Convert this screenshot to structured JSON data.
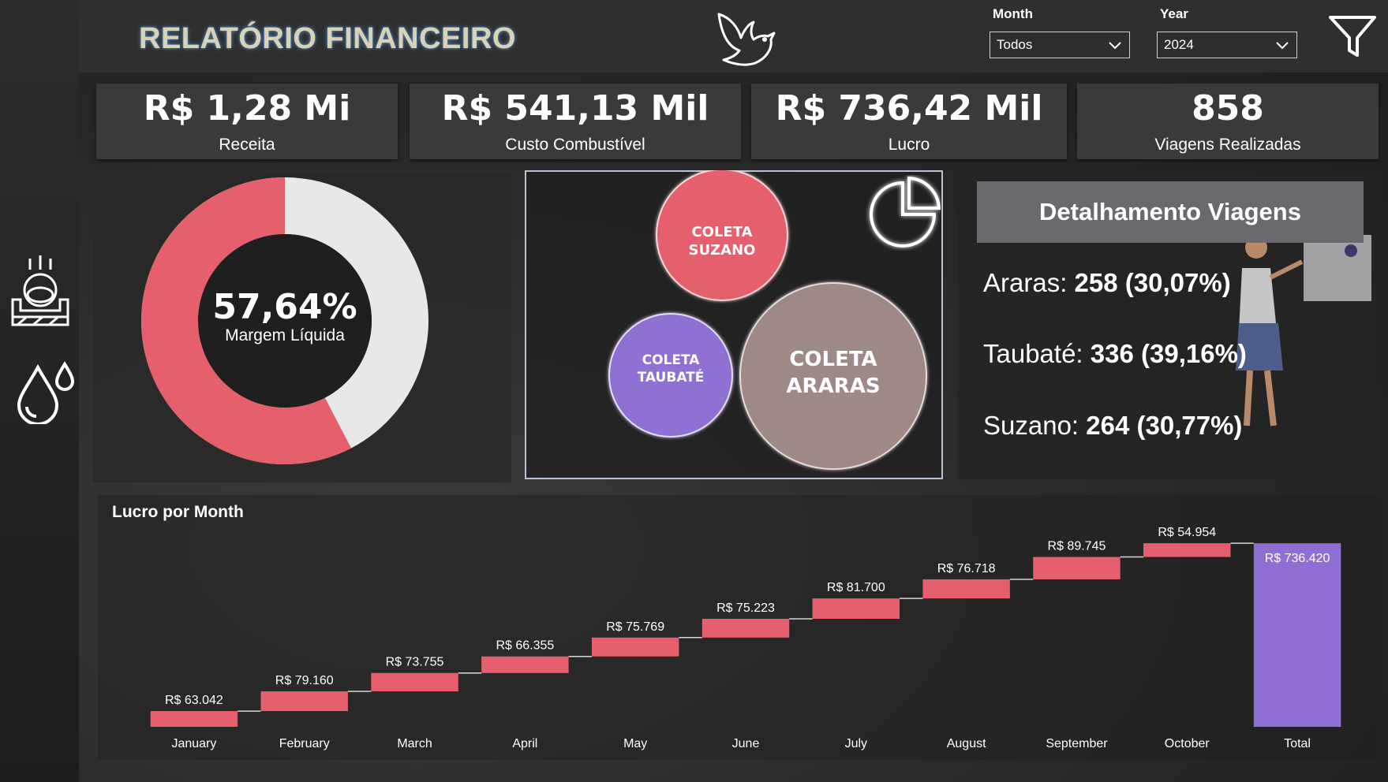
{
  "header": {
    "title": "RELATÓRIO FINANCEIRO",
    "month_slicer": {
      "label": "Month",
      "value": "Todos"
    },
    "year_slicer": {
      "label": "Year",
      "value": "2024"
    }
  },
  "kpis": [
    {
      "value": "R$ 1,28 Mi",
      "label": "Receita"
    },
    {
      "value": "R$ 541,13 Mil",
      "label": "Custo Combustível"
    },
    {
      "value": "R$ 736,42 Mil",
      "label": "Lucro"
    },
    {
      "value": "858",
      "label": "Viagens Realizadas"
    }
  ],
  "colors": {
    "accent": "#e5606c",
    "ring_rest": "#e8e8e8",
    "purple": "#8f6fd3",
    "taupe": "#9e8987"
  },
  "donut": {
    "value_text": "57,64%",
    "label": "Margem Líquida",
    "fraction": 0.5764
  },
  "bubbles": [
    {
      "line1": "COLETA",
      "line2": "SUZANO",
      "color": "#e5606c"
    },
    {
      "line1": "COLETA",
      "line2": "TAUBATÉ",
      "color": "#8f6fd3"
    },
    {
      "line1": "COLETA",
      "line2": "ARARAS",
      "color": "#9e8987"
    }
  ],
  "detalhamento": {
    "title": "Detalhamento Viagens",
    "rows": [
      {
        "city": "Araras:",
        "count": "258",
        "pct": "(30,07%)"
      },
      {
        "city": "Taubaté:",
        "count": "336",
        "pct": "(39,16%)"
      },
      {
        "city": "Suzano:",
        "count": "264",
        "pct": "(30,77%)"
      }
    ]
  },
  "chart_data": {
    "type": "waterfall",
    "title": "Lucro por Month",
    "categories": [
      "January",
      "February",
      "March",
      "April",
      "May",
      "June",
      "July",
      "August",
      "September",
      "October",
      "Total"
    ],
    "values": [
      63042,
      79160,
      73755,
      66355,
      75769,
      75223,
      81700,
      76718,
      89745,
      54954,
      736420
    ],
    "labels": [
      "R$ 63.042",
      "R$ 79.160",
      "R$ 73.755",
      "R$ 66.355",
      "R$ 75.769",
      "R$ 75.223",
      "R$ 81.700",
      "R$ 76.718",
      "R$ 89.745",
      "R$ 54.954",
      "R$ 736.420"
    ],
    "increase_color": "#e5606c",
    "total_color": "#8f6fd3",
    "ylim": [
      0,
      740000
    ]
  }
}
